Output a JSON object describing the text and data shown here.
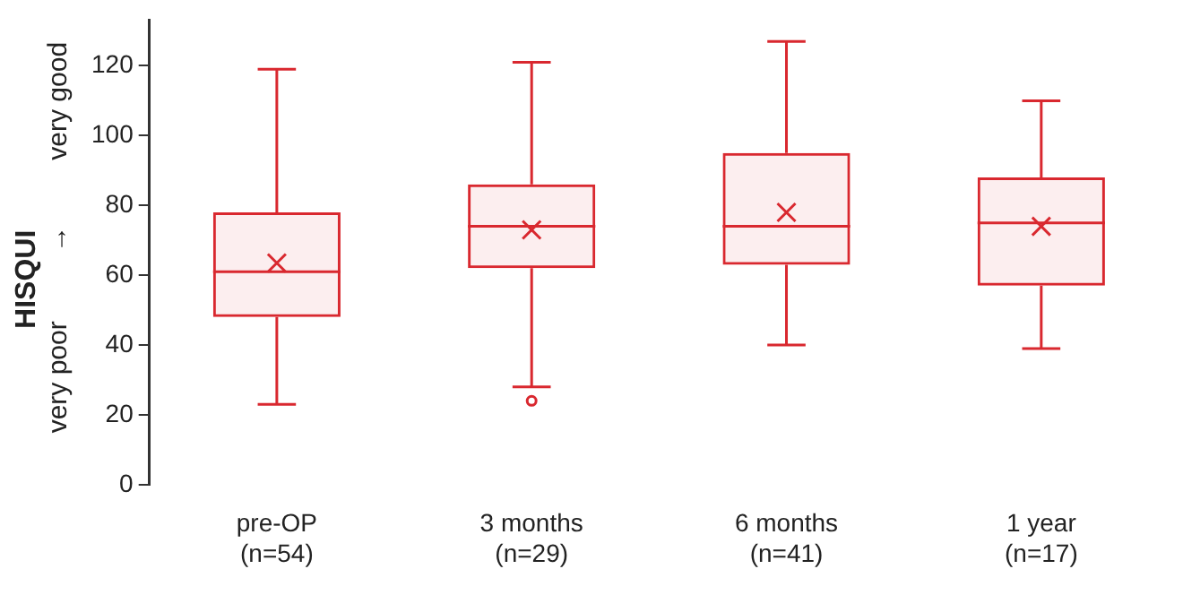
{
  "chart_data": {
    "type": "box",
    "ylabel": "HISQUI",
    "annotations": [
      "very poor",
      "→",
      "very good"
    ],
    "categories": [
      "pre-OP\n(n=54)",
      "3 months\n(n=29)",
      "6 months\n(n=41)",
      "1 year\n(n=17)"
    ],
    "series": [
      {
        "color": "#d9282f",
        "boxes": [
          {
            "low": 23,
            "q1": 48,
            "median": 61,
            "q3": 78,
            "high": 119,
            "mean": 63.5
          },
          {
            "low": 28,
            "q1": 62,
            "median": 74,
            "q3": 86,
            "high": 121,
            "mean": 73,
            "outliers": [
              24
            ]
          },
          {
            "low": 40,
            "q1": 63,
            "median": 74,
            "q3": 95,
            "high": 127,
            "mean": 78
          },
          {
            "low": 39,
            "q1": 57,
            "median": 75,
            "q3": 88,
            "high": 110,
            "mean": 74
          }
        ]
      }
    ],
    "ylim": [
      0,
      133
    ],
    "yticks": [
      0,
      20,
      40,
      60,
      80,
      100,
      120
    ],
    "grid": false,
    "legend": false
  }
}
